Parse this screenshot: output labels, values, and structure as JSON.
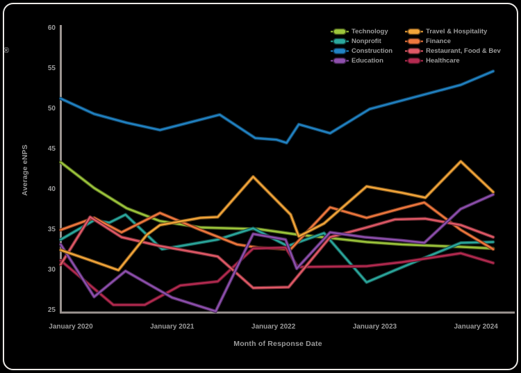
{
  "window": {
    "corner_glyph": "®"
  },
  "chart_data": {
    "type": "line",
    "title": "",
    "xlabel": "Month of Response Date",
    "ylabel": "Average eNPS",
    "grid": false,
    "legend_position": "top-right",
    "ylim": [
      25,
      60
    ],
    "xlim_years": [
      2019.9,
      2024.17
    ],
    "y_ticks": [
      60,
      55,
      50,
      45,
      40,
      35,
      30,
      25
    ],
    "x_ticks": [
      {
        "value": 2020,
        "label": "January 2020"
      },
      {
        "value": 2021,
        "label": "January 2021"
      },
      {
        "value": 2022,
        "label": "January 2022"
      },
      {
        "value": 2023,
        "label": "January 2023"
      },
      {
        "value": 2024,
        "label": "January 2024"
      }
    ],
    "series": [
      {
        "name": "Technology",
        "color": "#9dc63c",
        "points": [
          [
            2019.9,
            43.4
          ],
          [
            2020.23,
            40.2
          ],
          [
            2020.55,
            37.7
          ],
          [
            2020.88,
            36.1
          ],
          [
            2021.28,
            35.3
          ],
          [
            2021.85,
            35.1
          ],
          [
            2022.25,
            34.4
          ],
          [
            2022.56,
            34.0
          ],
          [
            2022.92,
            33.5
          ],
          [
            2023.27,
            33.2
          ],
          [
            2023.85,
            32.9
          ],
          [
            2024.17,
            32.7
          ]
        ]
      },
      {
        "name": "Nonprofit",
        "color": "#2ba89d",
        "points": [
          [
            2019.9,
            33.8
          ],
          [
            2020.23,
            36.2
          ],
          [
            2020.38,
            35.9
          ],
          [
            2020.54,
            36.9
          ],
          [
            2020.9,
            32.6
          ],
          [
            2021.45,
            33.8
          ],
          [
            2021.8,
            35.2
          ],
          [
            2022.14,
            33.0
          ],
          [
            2022.5,
            34.6
          ],
          [
            2022.92,
            28.5
          ],
          [
            2023.2,
            30.0
          ],
          [
            2023.85,
            33.4
          ],
          [
            2024.17,
            33.5
          ]
        ]
      },
      {
        "name": "Construction",
        "color": "#2183c4",
        "points": [
          [
            2019.9,
            51.3
          ],
          [
            2020.23,
            49.4
          ],
          [
            2020.55,
            48.3
          ],
          [
            2020.88,
            47.4
          ],
          [
            2021.47,
            49.3
          ],
          [
            2021.82,
            46.4
          ],
          [
            2022.03,
            46.2
          ],
          [
            2022.13,
            45.8
          ],
          [
            2022.25,
            48.1
          ],
          [
            2022.56,
            47.0
          ],
          [
            2022.95,
            50.0
          ],
          [
            2023.85,
            53.0
          ],
          [
            2024.17,
            54.7
          ]
        ]
      },
      {
        "name": "Education",
        "color": "#8e4fad",
        "points": [
          [
            2019.9,
            33.2
          ],
          [
            2020.23,
            26.7
          ],
          [
            2020.54,
            29.9
          ],
          [
            2021.0,
            26.6
          ],
          [
            2021.43,
            24.9
          ],
          [
            2021.8,
            34.5
          ],
          [
            2022.12,
            33.8
          ],
          [
            2022.23,
            30.2
          ],
          [
            2022.56,
            34.7
          ],
          [
            2022.9,
            34.1
          ],
          [
            2023.27,
            33.7
          ],
          [
            2023.49,
            33.4
          ],
          [
            2023.85,
            37.6
          ],
          [
            2024.17,
            39.4
          ]
        ]
      },
      {
        "name": "Travel & Hospitality",
        "color": "#f4a63a",
        "points": [
          [
            2019.9,
            32.5
          ],
          [
            2020.2,
            31.2
          ],
          [
            2020.47,
            30.0
          ],
          [
            2020.75,
            34.4
          ],
          [
            2020.88,
            35.6
          ],
          [
            2021.28,
            36.5
          ],
          [
            2021.45,
            36.6
          ],
          [
            2021.8,
            41.6
          ],
          [
            2022.17,
            36.9
          ],
          [
            2022.25,
            34.2
          ],
          [
            2022.5,
            35.8
          ],
          [
            2022.92,
            40.4
          ],
          [
            2023.27,
            39.6
          ],
          [
            2023.5,
            39.0
          ],
          [
            2023.85,
            43.5
          ],
          [
            2024.17,
            39.7
          ]
        ]
      },
      {
        "name": "Finance",
        "color": "#f0783e",
        "points": [
          [
            2019.9,
            35.0
          ],
          [
            2020.23,
            36.5
          ],
          [
            2020.5,
            34.7
          ],
          [
            2020.88,
            37.1
          ],
          [
            2021.28,
            35.0
          ],
          [
            2021.64,
            33.2
          ],
          [
            2021.85,
            32.8
          ],
          [
            2022.17,
            32.6
          ],
          [
            2022.56,
            37.8
          ],
          [
            2022.92,
            36.5
          ],
          [
            2023.27,
            37.7
          ],
          [
            2023.49,
            38.4
          ],
          [
            2023.85,
            35.0
          ],
          [
            2024.17,
            32.6
          ]
        ]
      },
      {
        "name": "Restaurant, Food & Bev",
        "color": "#e15967",
        "points": [
          [
            2019.9,
            30.7
          ],
          [
            2020.19,
            36.6
          ],
          [
            2020.5,
            34.1
          ],
          [
            2020.88,
            33.0
          ],
          [
            2021.28,
            32.1
          ],
          [
            2021.45,
            31.7
          ],
          [
            2021.8,
            27.8
          ],
          [
            2022.15,
            27.9
          ],
          [
            2022.56,
            34.1
          ],
          [
            2022.92,
            35.3
          ],
          [
            2023.2,
            36.3
          ],
          [
            2023.5,
            36.4
          ],
          [
            2023.85,
            35.6
          ],
          [
            2024.17,
            34.1
          ]
        ]
      },
      {
        "name": "Healthcare",
        "color": "#b42a50",
        "points": [
          [
            2019.9,
            31.2
          ],
          [
            2020.42,
            25.7
          ],
          [
            2020.73,
            25.7
          ],
          [
            2021.08,
            28.1
          ],
          [
            2021.45,
            28.6
          ],
          [
            2021.8,
            32.7
          ],
          [
            2022.12,
            32.8
          ],
          [
            2022.24,
            30.4
          ],
          [
            2022.92,
            30.5
          ],
          [
            2023.27,
            31.0
          ],
          [
            2023.85,
            32.1
          ],
          [
            2024.17,
            30.9
          ]
        ]
      }
    ]
  },
  "theme": {
    "background": "#000000",
    "frame_border": "#eceae7",
    "axis_color": "#9c9591",
    "tick_text": "#9a9a9a",
    "legend_text": "#9b9b9b"
  }
}
